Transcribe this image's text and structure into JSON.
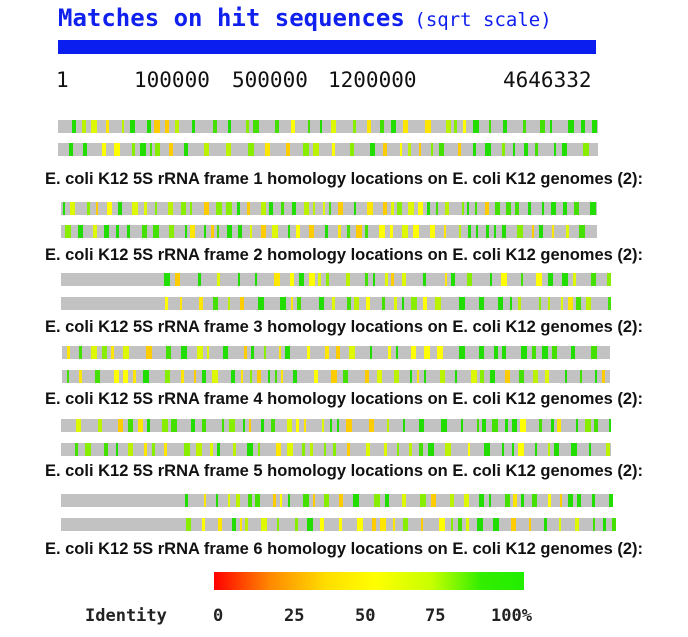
{
  "title": {
    "main": "Matches on hit sequences",
    "subtitle": "(sqrt scale)"
  },
  "scale": {
    "ticks": [
      "1",
      "100000",
      "500000",
      "1200000",
      "4646332"
    ]
  },
  "colors": {
    "track": "#c2c2c2",
    "scale_bar": "#0a1ef0",
    "title": "#1020ee"
  },
  "frames": [
    {
      "label": "E. coli K12 5S rRNA frame 1 homology locations on E. coli K12 genomes (2):"
    },
    {
      "label": "E. coli K12 5S rRNA frame 2 homology locations on E. coli K12 genomes (2):"
    },
    {
      "label": "E. coli K12 5S rRNA frame 3 homology locations on E. coli K12 genomes (2):"
    },
    {
      "label": "E. coli K12 5S rRNA frame 4 homology locations on E. coli K12 genomes (2):"
    },
    {
      "label": "E. coli K12 5S rRNA frame 5 homology locations on E. coli K12 genomes (2):"
    },
    {
      "label": "E. coli K12 5S rRNA frame 6 homology locations on E. coli K12 genomes (2):"
    }
  ],
  "legend": {
    "title": "Identity",
    "ticks": [
      "0",
      "25",
      "50",
      "75",
      "100%"
    ],
    "gradient": [
      "#ff0000",
      "#ff8800",
      "#ffdd00",
      "#ffff00",
      "#c8ff00",
      "#33ee00",
      "#22ee00"
    ]
  }
}
